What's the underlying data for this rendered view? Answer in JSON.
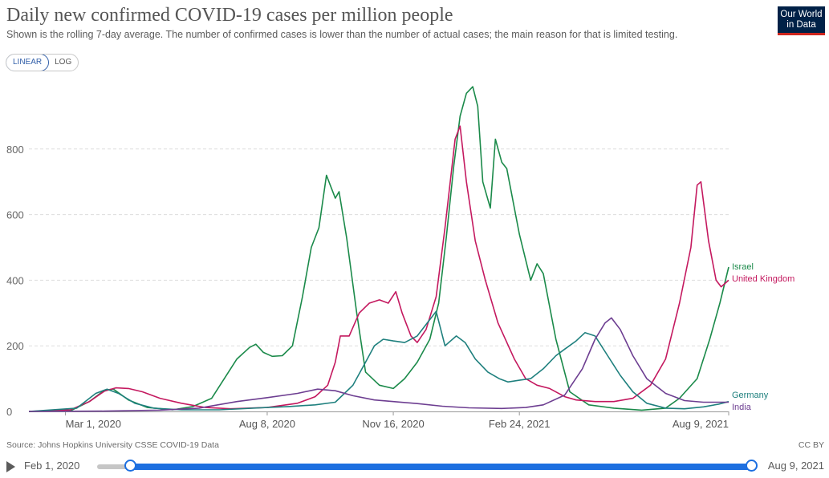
{
  "header": {
    "title": "Daily new confirmed COVID-19 cases per million people",
    "subtitle": "Shown is the rolling 7-day average. The number of confirmed cases is lower than the number of actual cases; the main reason for that is limited testing.",
    "logo_line1": "Our World",
    "logo_line2": "in Data"
  },
  "scale_toggle": {
    "linear_label": "LINEAR",
    "log_label": "LOG",
    "selected": "LINEAR"
  },
  "footer": {
    "source": "Source: Johns Hopkins University CSSE COVID-19 Data",
    "license": "CC BY"
  },
  "timeline": {
    "start_label": "Feb 1, 2020",
    "end_label": "Aug 9, 2021"
  },
  "chart_data": {
    "type": "line",
    "title": "Daily new confirmed COVID-19 cases per million people",
    "xlabel": "",
    "ylabel": "",
    "x_range": [
      "2020-02-01",
      "2021-08-09"
    ],
    "ylim": [
      0,
      1000
    ],
    "yticks": [
      0,
      200,
      400,
      600,
      800
    ],
    "xticks": [
      {
        "date": "2020-03-01",
        "label": "Mar 1, 2020"
      },
      {
        "date": "2020-08-08",
        "label": "Aug 8, 2020"
      },
      {
        "date": "2020-11-16",
        "label": "Nov 16, 2020"
      },
      {
        "date": "2021-02-24",
        "label": "Feb 24, 2021"
      },
      {
        "date": "2021-08-09",
        "label": "Aug 9, 2021"
      }
    ],
    "grid": "horizontal dashed",
    "legend": "end-of-line labels",
    "series": [
      {
        "name": "Israel",
        "color": "#1b8a4a",
        "points": [
          [
            "2020-02-01",
            0
          ],
          [
            "2020-03-05",
            2
          ],
          [
            "2020-03-20",
            30
          ],
          [
            "2020-04-01",
            65
          ],
          [
            "2020-04-08",
            68
          ],
          [
            "2020-04-20",
            35
          ],
          [
            "2020-05-05",
            12
          ],
          [
            "2020-05-25",
            5
          ],
          [
            "2020-06-10",
            15
          ],
          [
            "2020-06-25",
            40
          ],
          [
            "2020-07-05",
            100
          ],
          [
            "2020-07-15",
            160
          ],
          [
            "2020-07-25",
            195
          ],
          [
            "2020-07-30",
            205
          ],
          [
            "2020-08-05",
            180
          ],
          [
            "2020-08-12",
            168
          ],
          [
            "2020-08-20",
            170
          ],
          [
            "2020-08-28",
            200
          ],
          [
            "2020-09-05",
            350
          ],
          [
            "2020-09-12",
            500
          ],
          [
            "2020-09-18",
            560
          ],
          [
            "2020-09-24",
            720
          ],
          [
            "2020-09-27",
            690
          ],
          [
            "2020-10-01",
            650
          ],
          [
            "2020-10-04",
            670
          ],
          [
            "2020-10-10",
            530
          ],
          [
            "2020-10-18",
            300
          ],
          [
            "2020-10-25",
            120
          ],
          [
            "2020-11-05",
            80
          ],
          [
            "2020-11-16",
            70
          ],
          [
            "2020-11-25",
            100
          ],
          [
            "2020-12-05",
            150
          ],
          [
            "2020-12-15",
            220
          ],
          [
            "2020-12-22",
            330
          ],
          [
            "2020-12-28",
            530
          ],
          [
            "2021-01-03",
            750
          ],
          [
            "2021-01-08",
            900
          ],
          [
            "2021-01-13",
            970
          ],
          [
            "2021-01-18",
            990
          ],
          [
            "2021-01-22",
            930
          ],
          [
            "2021-01-26",
            700
          ],
          [
            "2021-02-01",
            620
          ],
          [
            "2021-02-05",
            830
          ],
          [
            "2021-02-10",
            760
          ],
          [
            "2021-02-14",
            740
          ],
          [
            "2021-02-24",
            540
          ],
          [
            "2021-03-05",
            400
          ],
          [
            "2021-03-10",
            450
          ],
          [
            "2021-03-15",
            420
          ],
          [
            "2021-03-25",
            220
          ],
          [
            "2021-04-05",
            60
          ],
          [
            "2021-04-20",
            20
          ],
          [
            "2021-05-10",
            10
          ],
          [
            "2021-06-01",
            4
          ],
          [
            "2021-06-20",
            10
          ],
          [
            "2021-07-01",
            40
          ],
          [
            "2021-07-15",
            100
          ],
          [
            "2021-07-25",
            220
          ],
          [
            "2021-08-02",
            330
          ],
          [
            "2021-08-09",
            440
          ]
        ]
      },
      {
        "name": "United Kingdom",
        "color": "#c4195f",
        "points": [
          [
            "2020-02-01",
            0
          ],
          [
            "2020-03-05",
            5
          ],
          [
            "2020-03-20",
            30
          ],
          [
            "2020-04-01",
            62
          ],
          [
            "2020-04-10",
            72
          ],
          [
            "2020-04-20",
            70
          ],
          [
            "2020-05-01",
            60
          ],
          [
            "2020-05-15",
            40
          ],
          [
            "2020-06-01",
            25
          ],
          [
            "2020-06-20",
            12
          ],
          [
            "2020-07-10",
            8
          ],
          [
            "2020-08-08",
            12
          ],
          [
            "2020-09-01",
            25
          ],
          [
            "2020-09-15",
            45
          ],
          [
            "2020-09-25",
            80
          ],
          [
            "2020-10-01",
            150
          ],
          [
            "2020-10-05",
            230
          ],
          [
            "2020-10-12",
            230
          ],
          [
            "2020-10-20",
            300
          ],
          [
            "2020-10-28",
            330
          ],
          [
            "2020-11-05",
            340
          ],
          [
            "2020-11-12",
            330
          ],
          [
            "2020-11-18",
            365
          ],
          [
            "2020-11-23",
            300
          ],
          [
            "2020-11-30",
            230
          ],
          [
            "2020-12-05",
            210
          ],
          [
            "2020-12-12",
            250
          ],
          [
            "2020-12-20",
            350
          ],
          [
            "2020-12-27",
            560
          ],
          [
            "2021-01-04",
            830
          ],
          [
            "2021-01-08",
            870
          ],
          [
            "2021-01-13",
            700
          ],
          [
            "2021-01-20",
            520
          ],
          [
            "2021-01-28",
            400
          ],
          [
            "2021-02-07",
            270
          ],
          [
            "2021-02-20",
            160
          ],
          [
            "2021-03-01",
            100
          ],
          [
            "2021-03-10",
            80
          ],
          [
            "2021-03-20",
            70
          ],
          [
            "2021-04-01",
            45
          ],
          [
            "2021-04-10",
            35
          ],
          [
            "2021-04-25",
            30
          ],
          [
            "2021-05-10",
            30
          ],
          [
            "2021-05-25",
            40
          ],
          [
            "2021-06-08",
            80
          ],
          [
            "2021-06-20",
            160
          ],
          [
            "2021-07-01",
            330
          ],
          [
            "2021-07-10",
            500
          ],
          [
            "2021-07-15",
            690
          ],
          [
            "2021-07-18",
            700
          ],
          [
            "2021-07-24",
            520
          ],
          [
            "2021-07-30",
            400
          ],
          [
            "2021-08-03",
            380
          ],
          [
            "2021-08-09",
            400
          ]
        ]
      },
      {
        "name": "Germany",
        "color": "#1f807e",
        "points": [
          [
            "2020-02-01",
            0
          ],
          [
            "2020-03-10",
            10
          ],
          [
            "2020-03-25",
            55
          ],
          [
            "2020-04-03",
            68
          ],
          [
            "2020-04-12",
            55
          ],
          [
            "2020-04-25",
            25
          ],
          [
            "2020-05-10",
            10
          ],
          [
            "2020-06-01",
            5
          ],
          [
            "2020-07-01",
            5
          ],
          [
            "2020-08-08",
            12
          ],
          [
            "2020-08-25",
            15
          ],
          [
            "2020-09-15",
            20
          ],
          [
            "2020-10-01",
            28
          ],
          [
            "2020-10-15",
            80
          ],
          [
            "2020-10-25",
            150
          ],
          [
            "2020-11-01",
            200
          ],
          [
            "2020-11-08",
            220
          ],
          [
            "2020-11-16",
            215
          ],
          [
            "2020-11-25",
            210
          ],
          [
            "2020-12-05",
            230
          ],
          [
            "2020-12-15",
            280
          ],
          [
            "2020-12-20",
            305
          ],
          [
            "2020-12-27",
            200
          ],
          [
            "2021-01-05",
            230
          ],
          [
            "2021-01-12",
            210
          ],
          [
            "2021-01-20",
            160
          ],
          [
            "2021-01-30",
            120
          ],
          [
            "2021-02-08",
            100
          ],
          [
            "2021-02-15",
            90
          ],
          [
            "2021-02-24",
            95
          ],
          [
            "2021-03-05",
            100
          ],
          [
            "2021-03-15",
            130
          ],
          [
            "2021-03-25",
            170
          ],
          [
            "2021-04-01",
            190
          ],
          [
            "2021-04-10",
            215
          ],
          [
            "2021-04-17",
            240
          ],
          [
            "2021-04-25",
            230
          ],
          [
            "2021-05-05",
            170
          ],
          [
            "2021-05-15",
            110
          ],
          [
            "2021-05-25",
            60
          ],
          [
            "2021-06-05",
            25
          ],
          [
            "2021-06-20",
            10
          ],
          [
            "2021-07-05",
            8
          ],
          [
            "2021-07-20",
            14
          ],
          [
            "2021-08-01",
            22
          ],
          [
            "2021-08-09",
            30
          ]
        ]
      },
      {
        "name": "India",
        "color": "#6d3e91",
        "points": [
          [
            "2020-02-01",
            0
          ],
          [
            "2020-04-01",
            1
          ],
          [
            "2020-05-15",
            4
          ],
          [
            "2020-06-15",
            10
          ],
          [
            "2020-07-15",
            30
          ],
          [
            "2020-08-08",
            42
          ],
          [
            "2020-09-01",
            55
          ],
          [
            "2020-09-17",
            68
          ],
          [
            "2020-10-01",
            63
          ],
          [
            "2020-10-15",
            48
          ],
          [
            "2020-11-01",
            35
          ],
          [
            "2020-11-16",
            30
          ],
          [
            "2020-12-05",
            24
          ],
          [
            "2020-12-25",
            16
          ],
          [
            "2021-01-15",
            11
          ],
          [
            "2021-02-10",
            9
          ],
          [
            "2021-03-01",
            12
          ],
          [
            "2021-03-15",
            20
          ],
          [
            "2021-04-01",
            50
          ],
          [
            "2021-04-15",
            130
          ],
          [
            "2021-04-25",
            220
          ],
          [
            "2021-05-03",
            270
          ],
          [
            "2021-05-08",
            285
          ],
          [
            "2021-05-15",
            250
          ],
          [
            "2021-05-25",
            170
          ],
          [
            "2021-06-05",
            100
          ],
          [
            "2021-06-20",
            55
          ],
          [
            "2021-07-05",
            33
          ],
          [
            "2021-07-20",
            28
          ],
          [
            "2021-08-09",
            28
          ]
        ]
      }
    ]
  }
}
